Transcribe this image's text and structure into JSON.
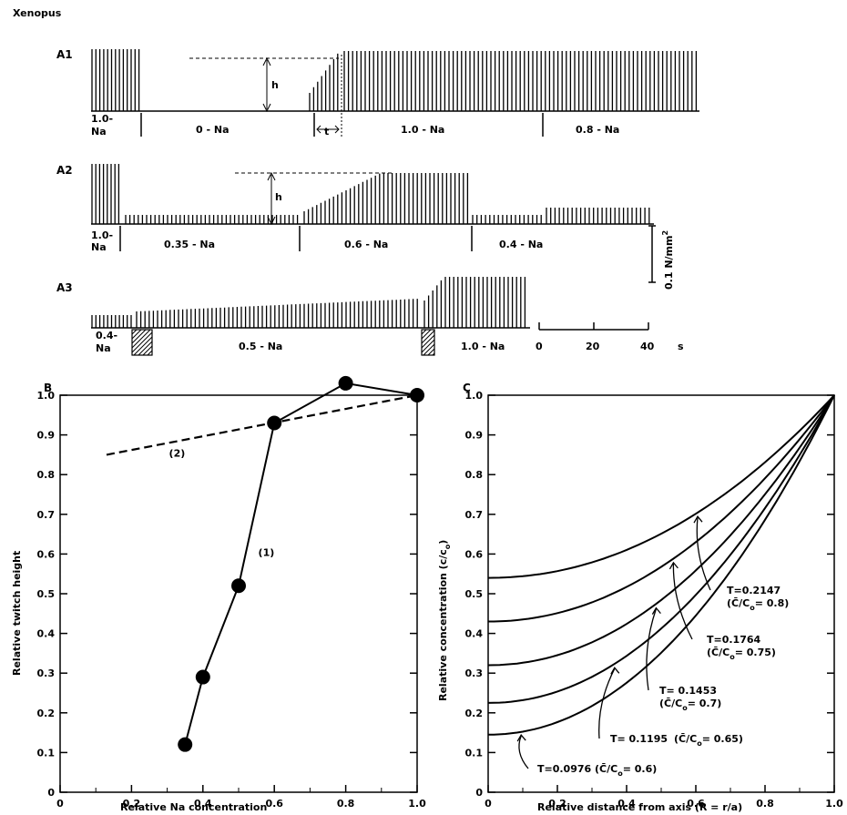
{
  "figure_title": "Xenopus",
  "trace_panels": [
    {
      "label": "A1",
      "h_label": "h",
      "t_label": "t",
      "segments": [
        "1.0-\nNa",
        "0 - Na",
        "1.0 - Na",
        "0.8 - Na"
      ]
    },
    {
      "label": "A2",
      "h_label": "h",
      "segments": [
        "1.0-\nNa",
        "0.35 - Na",
        "0.6 - Na",
        "0.4 - Na"
      ]
    },
    {
      "label": "A3",
      "segments": [
        "0.4-\nNa",
        "0.5 - Na",
        "1.0 - Na"
      ]
    }
  ],
  "scale_bars": {
    "force_label": "0.1 N/mm",
    "force_exponent": "2",
    "time_ticks": [
      "0",
      "20",
      "40"
    ],
    "time_unit": "s"
  },
  "chart_data": [
    {
      "panel": "B",
      "type": "line",
      "xlabel": "Relative Na concentration",
      "ylabel": "Relative twitch height",
      "xlim": [
        0,
        1.0
      ],
      "ylim": [
        0,
        1.0
      ],
      "xticks": [
        "0",
        "0.2",
        "0.4",
        "0.6",
        "0.8",
        "1.0"
      ],
      "yticks": [
        "0",
        "0.1",
        "0.2",
        "0.3",
        "0.4",
        "0.5",
        "0.6",
        "0.7",
        "0.8",
        "0.9",
        "1.0"
      ],
      "series": [
        {
          "name": "(1)",
          "style": "solid-with-markers",
          "x": [
            0.35,
            0.4,
            0.5,
            0.6,
            0.8,
            1.0
          ],
          "y": [
            0.12,
            0.29,
            0.52,
            0.93,
            1.03,
            1.0
          ]
        },
        {
          "name": "(2)",
          "style": "dashed",
          "x": [
            0.13,
            1.0
          ],
          "y": [
            0.85,
            1.0
          ]
        }
      ]
    },
    {
      "panel": "C",
      "type": "line",
      "xlabel": "Relative distance from axis (R = r/a)",
      "ylabel": "Relative concentration (c/c",
      "ylabel_sub": "o",
      "xlim": [
        0,
        1.0
      ],
      "ylim": [
        0,
        1.0
      ],
      "xticks": [
        "0",
        "0.2",
        "0.4",
        "0.6",
        "0.8",
        "1.0"
      ],
      "yticks": [
        "0",
        "0.1",
        "0.2",
        "0.3",
        "0.4",
        "0.5",
        "0.6",
        "0.7",
        "0.8",
        "0.9",
        "1.0"
      ],
      "series": [
        {
          "T": "T=0.2147",
          "cbar": "(C̄/C",
          "cbar_val": "= 0.8)",
          "start": 0.54,
          "inline": false
        },
        {
          "T": "T=0.1764",
          "cbar": "(C̄/C",
          "cbar_val": "= 0.75)",
          "start": 0.43,
          "inline": false
        },
        {
          "T": "T= 0.1453",
          "cbar": "(C̄/C",
          "cbar_val": "= 0.7)",
          "start": 0.32,
          "inline": false
        },
        {
          "T": "T= 0.1195",
          "cbar": "(C̄/C",
          "cbar_val": "= 0.65)",
          "start": 0.225,
          "inline": true
        },
        {
          "T": "T=0.0976",
          "cbar": "(C̄/C",
          "cbar_val": "= 0.6)",
          "start": 0.145,
          "inline": true
        }
      ]
    }
  ]
}
